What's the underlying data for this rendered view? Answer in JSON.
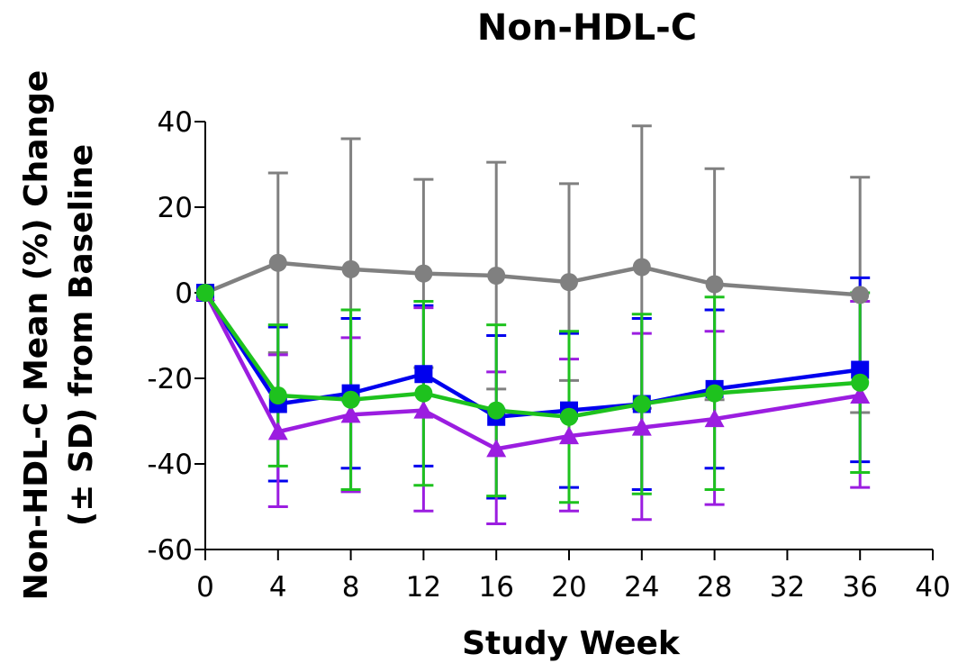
{
  "chart_data": {
    "type": "line",
    "title": "Non-HDL-C",
    "xlabel": "Study Week",
    "ylabel_lines": [
      "Non-HDL-C Mean (%) Change",
      "(± SD) from Baseline"
    ],
    "xlim": [
      0,
      40
    ],
    "ylim": [
      -60,
      40
    ],
    "xticks": [
      0,
      4,
      8,
      12,
      16,
      20,
      24,
      28,
      32,
      36,
      40
    ],
    "yticks": [
      -60,
      -40,
      -20,
      0,
      20,
      40
    ],
    "grid": false,
    "legend": "none",
    "series": [
      {
        "color": "#808080",
        "marker": "circle",
        "x": [
          0,
          4,
          8,
          12,
          16,
          20,
          24,
          28,
          36
        ],
        "y": [
          0,
          7,
          5.5,
          4.5,
          4,
          2.5,
          6,
          2,
          -0.5
        ],
        "err_plus": [
          0,
          21,
          30.5,
          22,
          26.5,
          23,
          33,
          27,
          27.5
        ],
        "err_minus": [
          0,
          21,
          30.5,
          22,
          26.5,
          23,
          33,
          27,
          27.5
        ]
      },
      {
        "color": "#0000ee",
        "marker": "square",
        "x": [
          0,
          4,
          8,
          12,
          16,
          20,
          24,
          28,
          36
        ],
        "y": [
          0,
          -26,
          -23.5,
          -19,
          -29,
          -27.5,
          -26,
          -22.5,
          -18
        ],
        "err_plus": [
          0,
          18,
          17.5,
          16,
          19,
          18,
          20,
          18.5,
          21.5
        ],
        "err_minus": [
          0,
          18,
          17.5,
          21.5,
          19,
          18,
          20,
          18.5,
          21.5
        ]
      },
      {
        "color": "#9b1de0",
        "marker": "triangle",
        "x": [
          0,
          4,
          8,
          12,
          16,
          20,
          24,
          28,
          36
        ],
        "y": [
          0,
          -32.5,
          -28.5,
          -27.5,
          -36.5,
          -33.5,
          -31.5,
          -29.5,
          -24
        ],
        "err_plus": [
          0,
          18,
          18,
          24,
          18,
          18,
          22,
          20.5,
          22
        ],
        "err_minus": [
          0,
          17.5,
          18,
          23.5,
          17.5,
          17.5,
          21.5,
          20,
          21.5
        ]
      },
      {
        "color": "#1ec21e",
        "marker": "circle",
        "x": [
          0,
          4,
          8,
          12,
          16,
          20,
          24,
          28,
          36
        ],
        "y": [
          0,
          -24,
          -25,
          -23.5,
          -27.5,
          -29,
          -26,
          -23.5,
          -21
        ],
        "err_plus": [
          0,
          16.5,
          21,
          21.5,
          20,
          20,
          21,
          22.5,
          21
        ],
        "err_minus": [
          0,
          16.5,
          21,
          21.5,
          20,
          20,
          21,
          22.5,
          21
        ]
      }
    ]
  }
}
